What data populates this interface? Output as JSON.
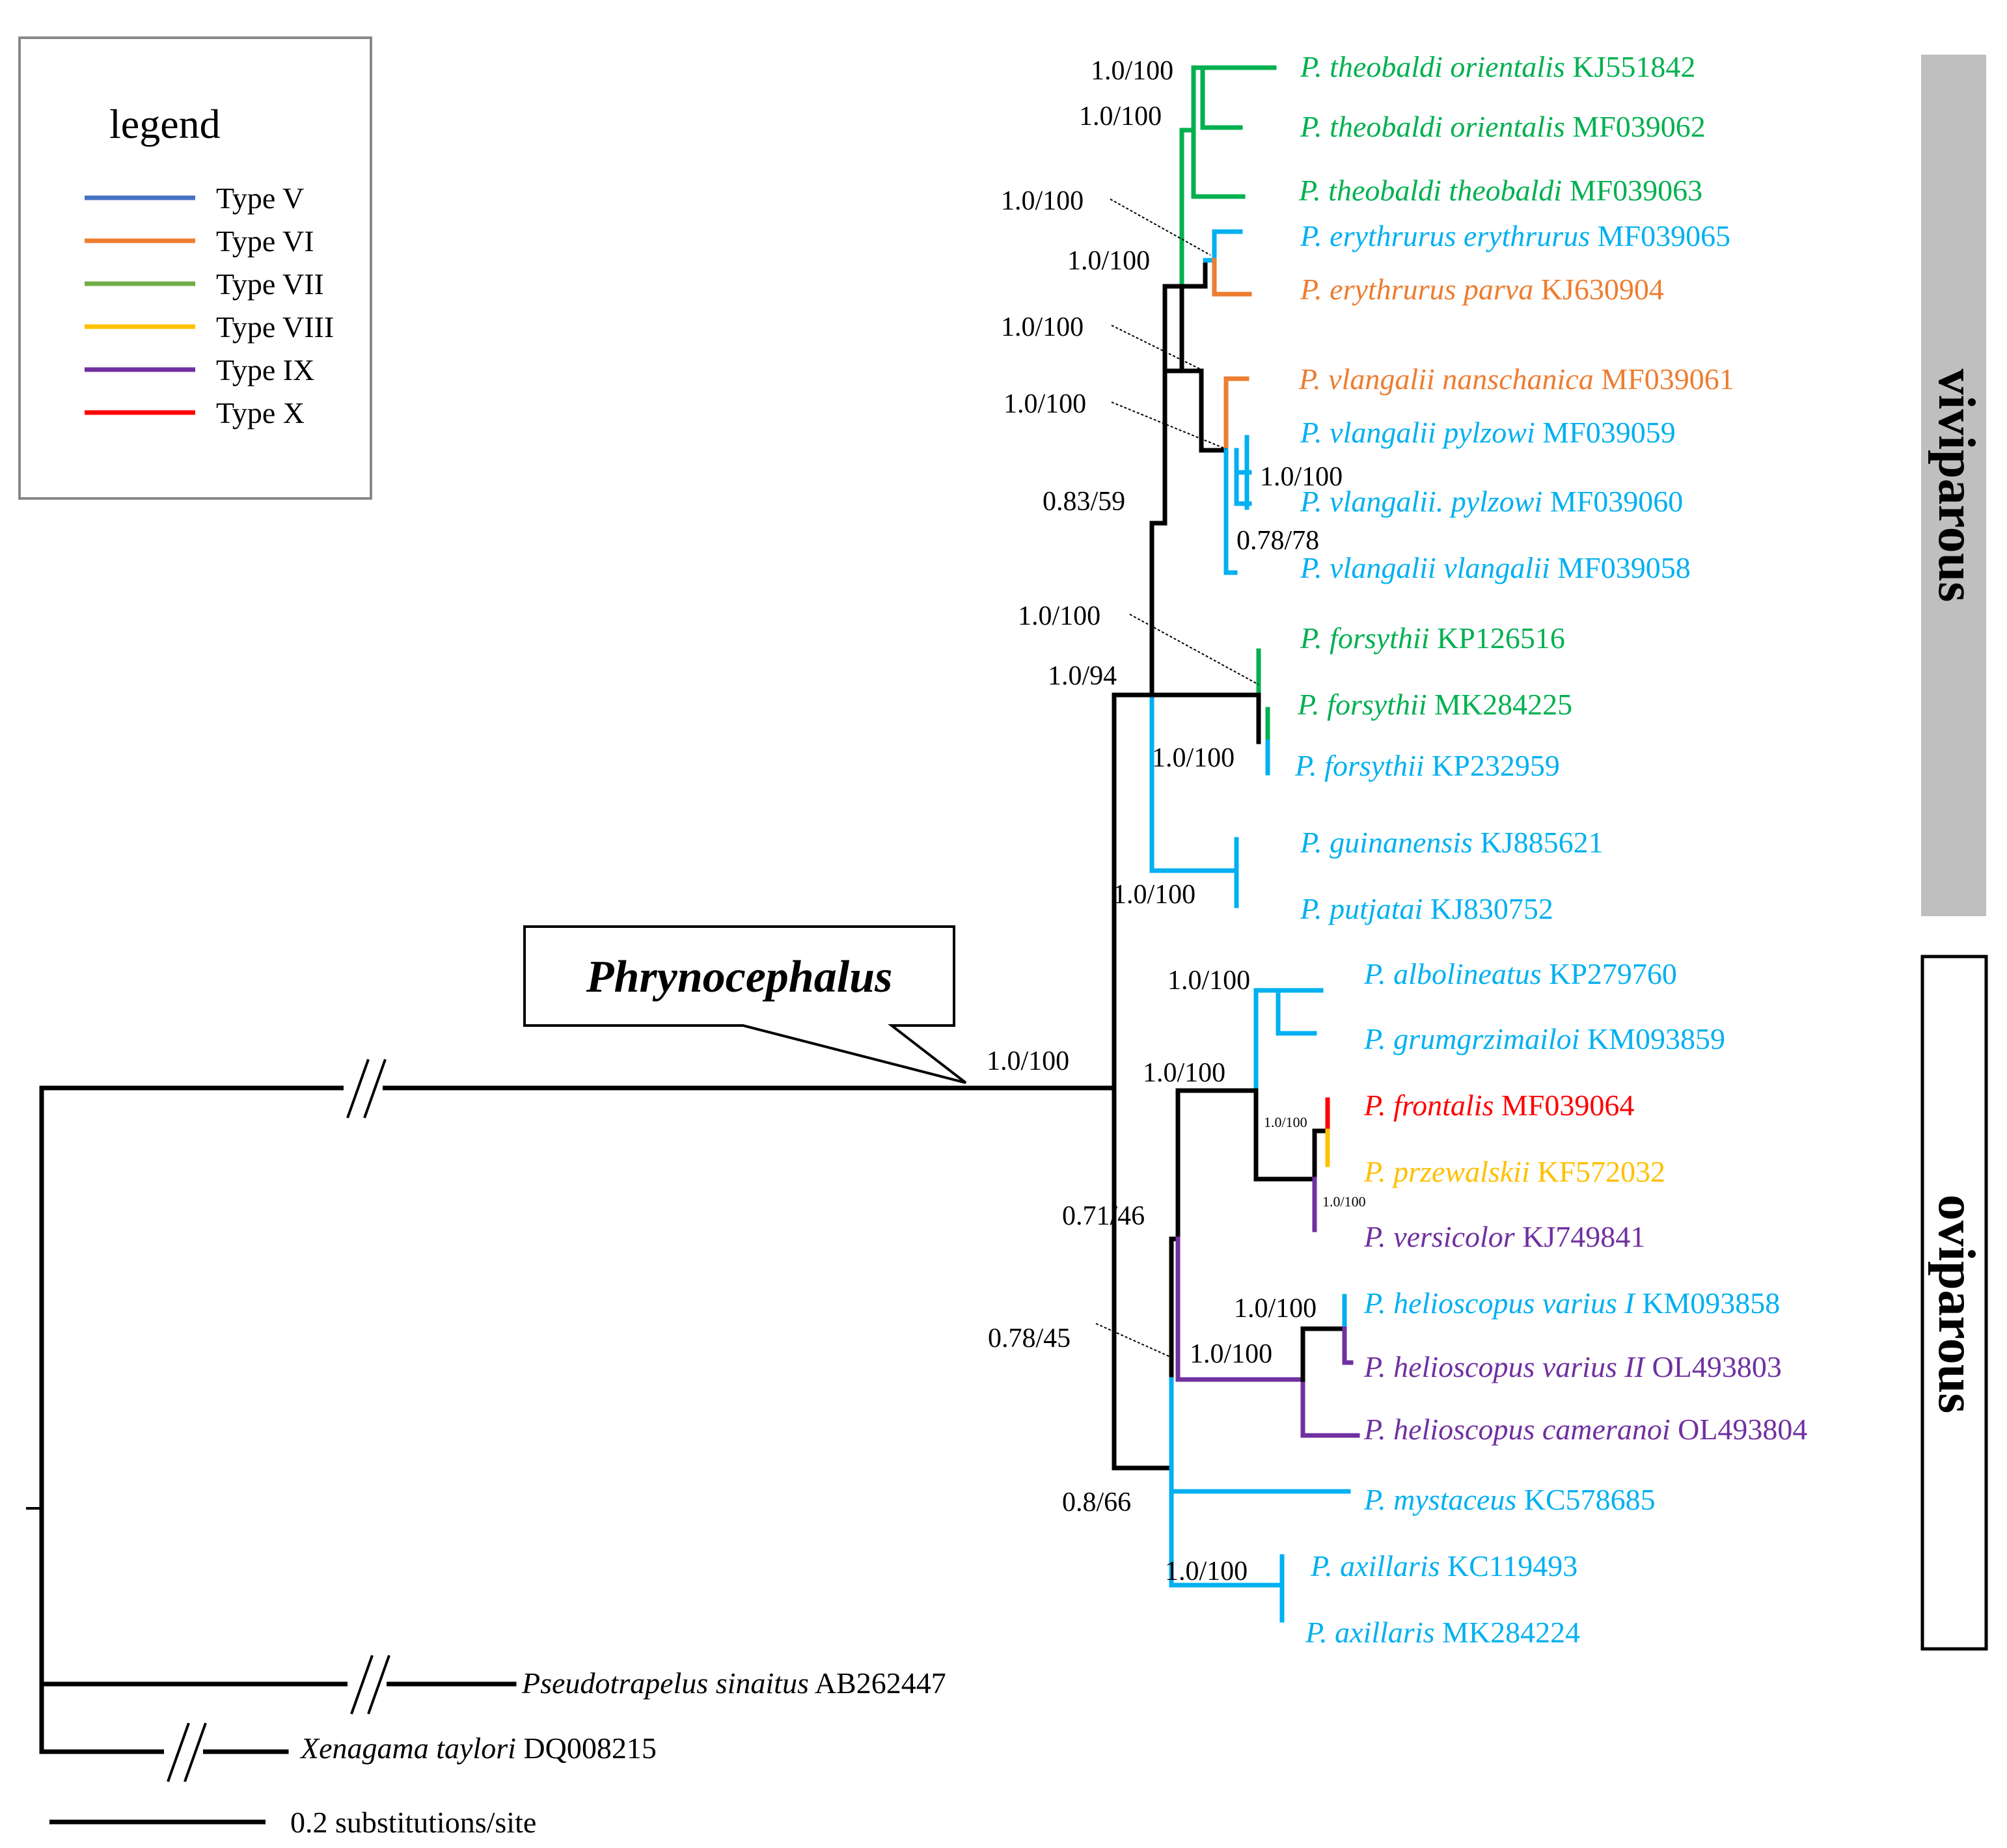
{
  "legend": {
    "title": "legend",
    "items": [
      {
        "label": "Type V",
        "color": "#4472c4"
      },
      {
        "label": "Type VI",
        "color": "#ed7d31"
      },
      {
        "label": "Type VII",
        "color": "#70ad47"
      },
      {
        "label": "Type VIII",
        "color": "#ffc000"
      },
      {
        "label": "Type IX",
        "color": "#7030a0"
      },
      {
        "label": "Type X",
        "color": "#ff0000"
      }
    ]
  },
  "colors": {
    "black": "#000000",
    "blue": "#00b0f0",
    "green": "#00b050",
    "orange": "#ed7d31",
    "red": "#ff0000",
    "yellow": "#ffc000",
    "purple": "#7030a0",
    "gray_box": "#bfbfbf"
  },
  "genus_label": "Phrynocephalus",
  "reproduction_modes": {
    "viviparous": "viviparous",
    "oviparous": "oviparous"
  },
  "scale_bar": {
    "label": "0.2 substitutions/site",
    "length": 0.2
  },
  "taxa": [
    {
      "species": "P. theobaldi orientalis",
      "accession": "KJ551842",
      "color": "green"
    },
    {
      "species": "P. theobaldi orientalis",
      "accession": "MF039062",
      "color": "green"
    },
    {
      "species": "P. theobaldi theobaldi",
      "accession": "MF039063",
      "color": "green"
    },
    {
      "species": "P. erythrurus erythrurus",
      "accession": "MF039065",
      "color": "blue"
    },
    {
      "species": "P. erythrurus parva",
      "accession": "KJ630904",
      "color": "orange"
    },
    {
      "species": "P. vlangalii nanschanica",
      "accession": "MF039061",
      "color": "orange"
    },
    {
      "species": "P. vlangalii pylzowi",
      "accession": "MF039059",
      "color": "blue"
    },
    {
      "species": "P. vlangalii. pylzowi",
      "accession": "MF039060",
      "color": "blue"
    },
    {
      "species": "P. vlangalii vlangalii",
      "accession": "MF039058",
      "color": "blue"
    },
    {
      "species": "P. forsythii",
      "accession": "KP126516",
      "color": "green"
    },
    {
      "species": "P. forsythii",
      "accession": "MK284225",
      "color": "green"
    },
    {
      "species": "P. forsythii",
      "accession": "KP232959",
      "color": "blue"
    },
    {
      "species": "P. guinanensis",
      "accession": "KJ885621",
      "color": "blue"
    },
    {
      "species": "P. putjatai",
      "accession": "KJ830752",
      "color": "blue"
    },
    {
      "species": "P. albolineatus",
      "accession": "KP279760",
      "color": "blue"
    },
    {
      "species": "P. grumgrzimailoi",
      "accession": "KM093859",
      "color": "blue"
    },
    {
      "species": "P. frontalis",
      "accession": "MF039064",
      "color": "red"
    },
    {
      "species": "P. przewalskii",
      "accession": "KF572032",
      "color": "yellow"
    },
    {
      "species": "P. versicolor",
      "accession": "KJ749841",
      "color": "purple"
    },
    {
      "species": "P. helioscopus varius I",
      "accession": "KM093858",
      "color": "blue"
    },
    {
      "species": "P. helioscopus varius II",
      "accession": "OL493803",
      "color": "purple"
    },
    {
      "species": "P. helioscopus cameranoi",
      "accession": "OL493804",
      "color": "purple"
    },
    {
      "species": "P. mystaceus",
      "accession": "KC578685",
      "color": "blue"
    },
    {
      "species": "P. axillaris",
      "accession": "KC119493",
      "color": "blue"
    },
    {
      "species": "P. axillaris",
      "accession": "MK284224",
      "color": "blue"
    },
    {
      "species": "Pseudotrapelus sinaitus",
      "accession": "AB262447",
      "color": "black"
    },
    {
      "species": "Xenagama taylori",
      "accession": "DQ008215",
      "color": "black"
    }
  ],
  "support_values": {
    "theobaldi_orientalis": "1.0/100",
    "theobaldi_clade": "1.0/100",
    "erythrurus": "1.0/100",
    "theobaldi_erythrurus": "1.0/100",
    "vlangalii_erythrurus": "1.0/100",
    "vlangalii": "1.0/100",
    "pylzowi": "1.0/100",
    "vlangalii_vlangalii": "0.78/78",
    "upper_core": "0.83/59",
    "forsythii_outer": "1.0/100",
    "forsythii_inner": "1.0/100",
    "viviparous_clade": "1.0/94",
    "guinanensis_putjatai": "1.0/100",
    "root_phrynocephalus": "1.0/100",
    "albolineatus_grum": "1.0/100",
    "frontalis_group": "1.0/100",
    "frontalis_przewalskii": "1.0/100",
    "przewalskii_versicolor": "1.0/100",
    "oviparous_upper": "0.71/46",
    "helioscopus_varius": "1.0/100",
    "helioscopus": "1.0/100",
    "helioscopus_node": "0.78/45",
    "oviparous_clade": "0.8/66",
    "axillaris": "1.0/100"
  }
}
